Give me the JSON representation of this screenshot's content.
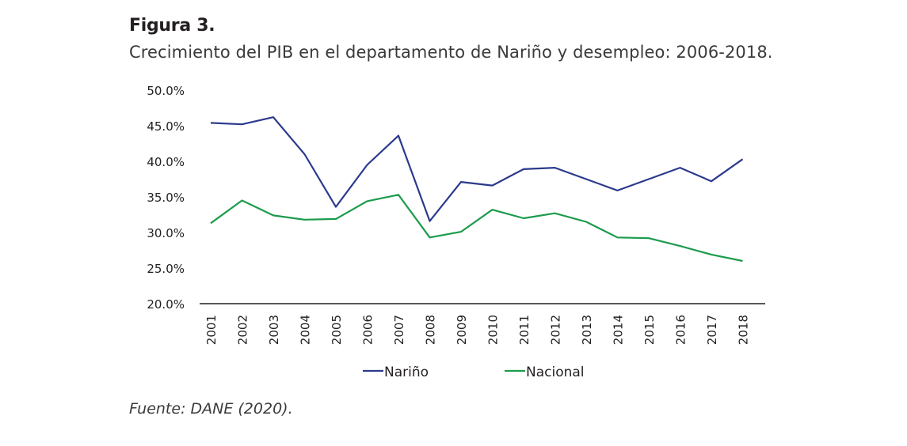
{
  "figure": {
    "label": "Figura 3.",
    "title": "Crecimiento del PIB en el departamento de Nariño y desempleo: 2006-2018.",
    "source": "Fuente: DANE (2020)."
  },
  "chart_data": {
    "type": "line",
    "title": "",
    "xlabel": "",
    "ylabel": "",
    "x": [
      "2001",
      "2002",
      "2003",
      "2004",
      "2005",
      "2006",
      "2007",
      "2008",
      "2009",
      "2010",
      "2011",
      "2012",
      "2013",
      "2014",
      "2015",
      "2016",
      "2017",
      "2018"
    ],
    "y_ticks": [
      "50.0%",
      "45.0%",
      "40.0%",
      "35.0%",
      "30.0%",
      "25.0%",
      "20.0%"
    ],
    "ylim": [
      20,
      50
    ],
    "grid": false,
    "legend_position": "bottom",
    "series": [
      {
        "name": "Nariño",
        "color": "#2b3a8c",
        "values": [
          45.4,
          45.2,
          46.2,
          41.0,
          33.6,
          39.5,
          43.6,
          31.6,
          37.1,
          36.6,
          38.9,
          39.1,
          37.5,
          35.9,
          37.5,
          39.1,
          37.2,
          40.3
        ]
      },
      {
        "name": "Nacional",
        "color": "#1c9b4b",
        "values": [
          31.3,
          34.5,
          32.4,
          31.8,
          31.9,
          34.4,
          35.3,
          29.3,
          30.1,
          33.2,
          32.0,
          32.7,
          31.5,
          29.3,
          29.2,
          28.1,
          26.9,
          26.0
        ]
      }
    ]
  }
}
